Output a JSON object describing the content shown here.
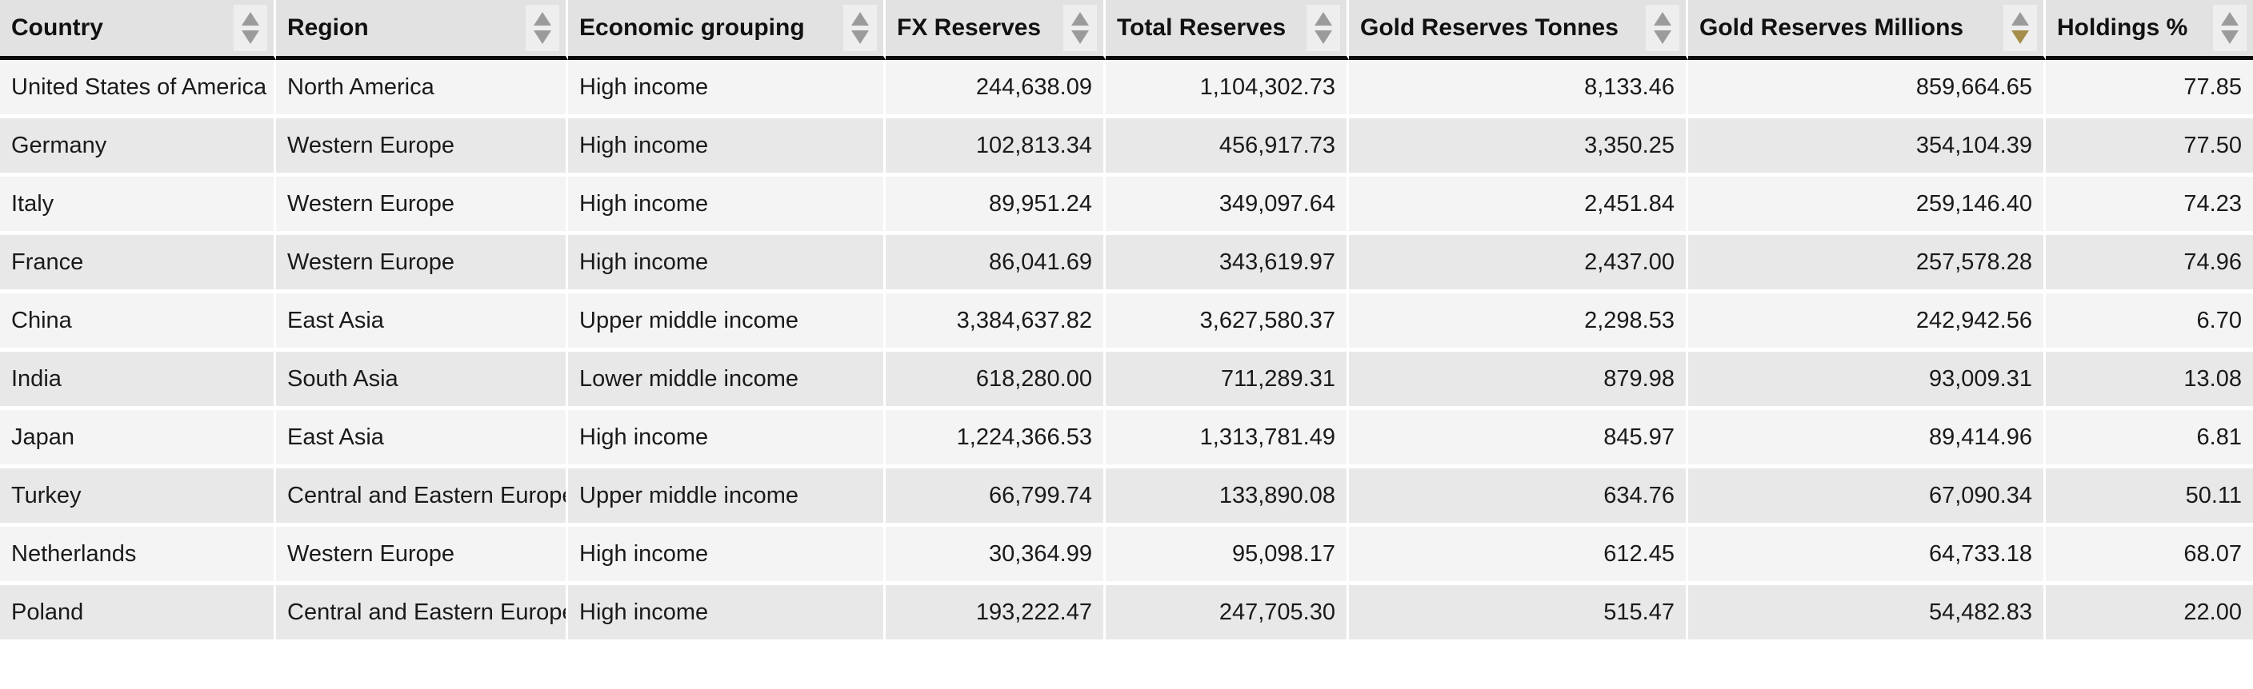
{
  "table": {
    "columns": [
      {
        "label": "Country",
        "type": "text",
        "sort": "none"
      },
      {
        "label": "Region",
        "type": "text",
        "sort": "none"
      },
      {
        "label": "Economic grouping",
        "type": "text",
        "sort": "none"
      },
      {
        "label": "FX Reserves",
        "type": "number",
        "sort": "none"
      },
      {
        "label": "Total Reserves",
        "type": "number",
        "sort": "none"
      },
      {
        "label": "Gold Reserves Tonnes",
        "type": "number",
        "sort": "none"
      },
      {
        "label": "Gold Reserves Millions",
        "type": "number",
        "sort": "desc"
      },
      {
        "label": "Holdings %",
        "type": "number",
        "sort": "none"
      }
    ],
    "rows": [
      [
        "United States of America",
        "North America",
        "High income",
        "244,638.09",
        "1,104,302.73",
        "8,133.46",
        "859,664.65",
        "77.85"
      ],
      [
        "Germany",
        "Western Europe",
        "High income",
        "102,813.34",
        "456,917.73",
        "3,350.25",
        "354,104.39",
        "77.50"
      ],
      [
        "Italy",
        "Western Europe",
        "High income",
        "89,951.24",
        "349,097.64",
        "2,451.84",
        "259,146.40",
        "74.23"
      ],
      [
        "France",
        "Western Europe",
        "High income",
        "86,041.69",
        "343,619.97",
        "2,437.00",
        "257,578.28",
        "74.96"
      ],
      [
        "China",
        "East Asia",
        "Upper middle income",
        "3,384,637.82",
        "3,627,580.37",
        "2,298.53",
        "242,942.56",
        "6.70"
      ],
      [
        "India",
        "South Asia",
        "Lower middle income",
        "618,280.00",
        "711,289.31",
        "879.98",
        "93,009.31",
        "13.08"
      ],
      [
        "Japan",
        "East Asia",
        "High income",
        "1,224,366.53",
        "1,313,781.49",
        "845.97",
        "89,414.96",
        "6.81"
      ],
      [
        "Turkey",
        "Central and Eastern Europe",
        "Upper middle income",
        "66,799.74",
        "133,890.08",
        "634.76",
        "67,090.34",
        "50.11"
      ],
      [
        "Netherlands",
        "Western Europe",
        "High income",
        "30,364.99",
        "95,098.17",
        "612.45",
        "64,733.18",
        "68.07"
      ],
      [
        "Poland",
        "Central and Eastern Europe",
        "High income",
        "193,222.47",
        "247,705.30",
        "515.47",
        "54,482.83",
        "22.00"
      ]
    ],
    "sorted_by": "Gold Reserves Millions",
    "sort_direction": "descending"
  },
  "icons": {
    "sort_ascending": "sort-ascending-icon",
    "sort_descending": "sort-descending-icon"
  },
  "colors": {
    "header_bg": "#e2e2e2",
    "sort_box_bg": "#eeeeee",
    "row_light": "#f4f4f4",
    "row_dark": "#e8e8e8",
    "sort_arrow": "#9b9b9b",
    "sort_arrow_active": "#a58e4a",
    "header_bottom_border": "#0a0a0a",
    "text": "#1a1a1a"
  }
}
